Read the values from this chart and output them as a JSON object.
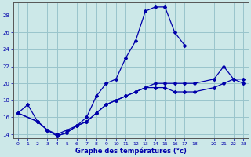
{
  "title": "Graphe des températures (°c)",
  "background_color": "#cce8e8",
  "grid_color": "#99c4cc",
  "line_color": "#0000aa",
  "xlim": [
    -0.5,
    23.5
  ],
  "ylim": [
    13.5,
    29.5
  ],
  "xticks": [
    0,
    1,
    2,
    3,
    4,
    5,
    6,
    7,
    8,
    9,
    10,
    11,
    12,
    13,
    14,
    15,
    16,
    17,
    18,
    20,
    21,
    22,
    23
  ],
  "yticks": [
    14,
    16,
    18,
    20,
    22,
    24,
    26,
    28
  ],
  "line1_x": [
    0,
    1,
    2,
    3,
    4,
    5,
    6,
    7,
    8,
    9,
    10,
    11,
    12,
    13,
    14,
    15,
    16,
    17
  ],
  "line1_y": [
    16.5,
    17.5,
    15.5,
    14.5,
    14.0,
    14.5,
    15.0,
    16.0,
    18.5,
    20.0,
    20.5,
    23.0,
    25.0,
    28.5,
    29.0,
    29.0,
    26.0,
    24.5
  ],
  "line2_x": [
    0,
    2,
    3,
    4,
    5,
    6,
    7,
    8,
    9,
    10,
    11,
    12,
    13,
    14,
    15,
    16,
    17,
    18,
    20,
    21,
    22,
    23
  ],
  "line2_y": [
    16.5,
    15.5,
    14.5,
    13.8,
    14.2,
    15.0,
    15.5,
    16.5,
    17.5,
    18.0,
    18.5,
    19.0,
    19.5,
    19.5,
    19.5,
    19.0,
    19.0,
    19.0,
    19.5,
    20.0,
    20.5,
    20.0
  ],
  "line3_x": [
    0,
    2,
    3,
    4,
    5,
    6,
    7,
    8,
    9,
    10,
    11,
    12,
    13,
    14,
    15,
    16,
    17,
    18,
    20,
    21,
    22,
    23
  ],
  "line3_y": [
    16.5,
    15.5,
    14.5,
    13.8,
    14.2,
    15.0,
    15.5,
    16.5,
    17.5,
    18.0,
    18.5,
    19.0,
    19.5,
    20.0,
    20.0,
    20.0,
    20.0,
    20.0,
    20.5,
    22.0,
    20.5,
    20.5
  ]
}
